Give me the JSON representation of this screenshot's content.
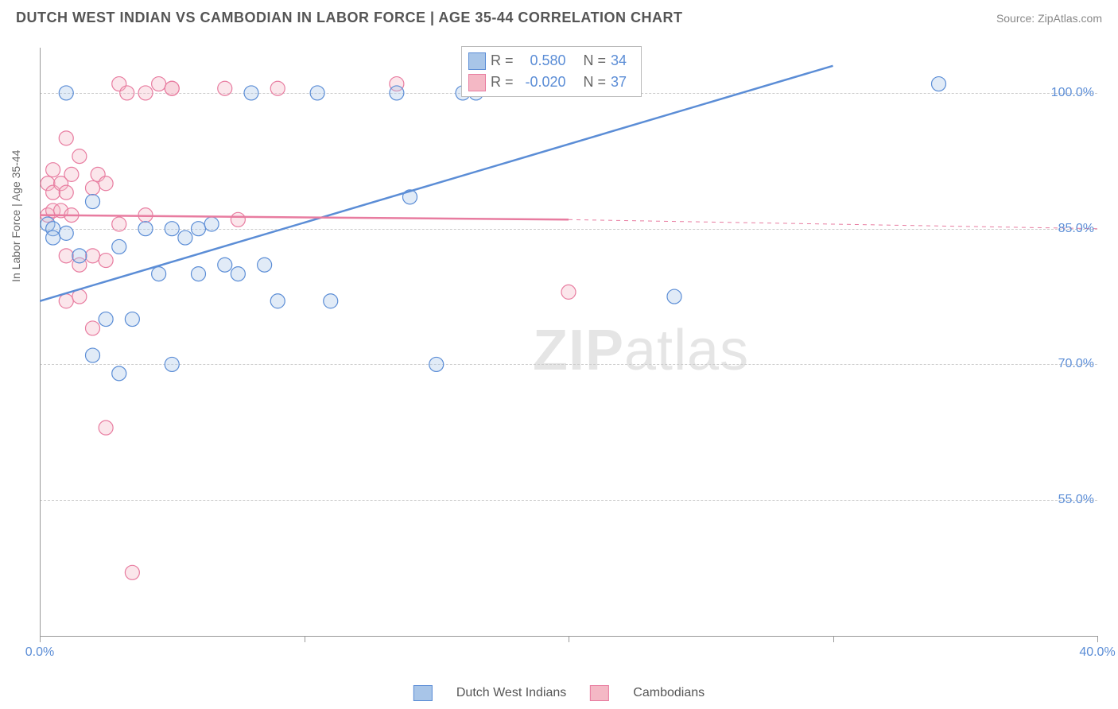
{
  "header": {
    "title": "DUTCH WEST INDIAN VS CAMBODIAN IN LABOR FORCE | AGE 35-44 CORRELATION CHART",
    "source": "Source: ZipAtlas.com"
  },
  "chart": {
    "type": "scatter",
    "background_color": "#ffffff",
    "grid_color": "#cccccc",
    "axis_color": "#999999",
    "title_color": "#555555",
    "title_fontsize": 18,
    "tick_label_color": "#5b8dd6",
    "tick_label_fontsize": 16,
    "axis_label_color": "#666666",
    "axis_label_fontsize": 14,
    "y_axis_label": "In Labor Force | Age 35-44",
    "xlim": [
      0,
      40
    ],
    "ylim": [
      40,
      105
    ],
    "y_ticks": [
      55,
      70,
      85,
      100
    ],
    "y_tick_labels": [
      "55.0%",
      "70.0%",
      "85.0%",
      "100.0%"
    ],
    "x_ticks": [
      0,
      10,
      20,
      30,
      40
    ],
    "x_tick_labels_shown": {
      "0": "0.0%",
      "40": "40.0%"
    },
    "marker_radius": 9,
    "marker_fill_opacity": 0.35,
    "marker_stroke_width": 1.2,
    "line_width_solid": 2.5,
    "line_width_dashed": 1,
    "watermark": {
      "text_bold": "ZIP",
      "text_light": "atlas",
      "color": "#cccccc",
      "fontsize": 72
    }
  },
  "series": {
    "a": {
      "label": "Dutch West Indians",
      "color_fill": "#a8c5e8",
      "color_stroke": "#5b8dd6",
      "R": "0.580",
      "N": "34",
      "regression": {
        "x1": 0,
        "y1": 77,
        "x2": 30,
        "y2": 103,
        "dashed_after_x": 30
      },
      "points": [
        [
          0.3,
          85.5
        ],
        [
          0.5,
          85
        ],
        [
          0.5,
          84
        ],
        [
          1.0,
          100
        ],
        [
          1.0,
          84.5
        ],
        [
          1.5,
          82
        ],
        [
          2.0,
          88
        ],
        [
          2.0,
          71
        ],
        [
          2.5,
          75
        ],
        [
          3.0,
          69
        ],
        [
          3.0,
          83
        ],
        [
          3.5,
          75
        ],
        [
          4.0,
          85
        ],
        [
          4.5,
          80
        ],
        [
          5.0,
          85
        ],
        [
          5.0,
          70
        ],
        [
          5.5,
          84
        ],
        [
          6.0,
          80
        ],
        [
          6.0,
          85
        ],
        [
          6.5,
          85.5
        ],
        [
          7.0,
          81
        ],
        [
          7.5,
          80
        ],
        [
          8.0,
          100
        ],
        [
          8.5,
          81
        ],
        [
          9.0,
          77
        ],
        [
          10.5,
          100
        ],
        [
          11.0,
          77
        ],
        [
          13.5,
          100
        ],
        [
          14.0,
          88.5
        ],
        [
          15.0,
          70
        ],
        [
          16.0,
          100
        ],
        [
          16.5,
          100
        ],
        [
          24.0,
          77.5
        ],
        [
          34.0,
          101
        ]
      ]
    },
    "b": {
      "label": "Cambodians",
      "color_fill": "#f4b8c5",
      "color_stroke": "#e87ca0",
      "R": "-0.020",
      "N": "37",
      "regression": {
        "x1": 0,
        "y1": 86.5,
        "x2": 20,
        "y2": 86,
        "dashed_x2": 40,
        "dashed_y2": 85
      },
      "points": [
        [
          0.3,
          86.5
        ],
        [
          0.3,
          90
        ],
        [
          0.5,
          89
        ],
        [
          0.5,
          87
        ],
        [
          0.5,
          91.5
        ],
        [
          0.8,
          90
        ],
        [
          0.8,
          87
        ],
        [
          1.0,
          95
        ],
        [
          1.0,
          89
        ],
        [
          1.0,
          82
        ],
        [
          1.0,
          77
        ],
        [
          1.2,
          91
        ],
        [
          1.2,
          86.5
        ],
        [
          1.5,
          93
        ],
        [
          1.5,
          81
        ],
        [
          1.5,
          77.5
        ],
        [
          2.0,
          89.5
        ],
        [
          2.0,
          82
        ],
        [
          2.0,
          74
        ],
        [
          2.2,
          91
        ],
        [
          2.5,
          90
        ],
        [
          2.5,
          81.5
        ],
        [
          2.5,
          63
        ],
        [
          3.0,
          85.5
        ],
        [
          3.0,
          101
        ],
        [
          3.3,
          100
        ],
        [
          3.5,
          47
        ],
        [
          4.0,
          100
        ],
        [
          4.0,
          86.5
        ],
        [
          4.5,
          101
        ],
        [
          5.0,
          100.5
        ],
        [
          5.0,
          100.5
        ],
        [
          7.0,
          100.5
        ],
        [
          7.5,
          86
        ],
        [
          9.0,
          100.5
        ],
        [
          13.5,
          101
        ],
        [
          20.0,
          78
        ]
      ]
    }
  },
  "legend_box": {
    "r_label": "R =",
    "n_label": "N ="
  },
  "bottom_legend": {
    "a_label": "Dutch West Indians",
    "b_label": "Cambodians"
  }
}
